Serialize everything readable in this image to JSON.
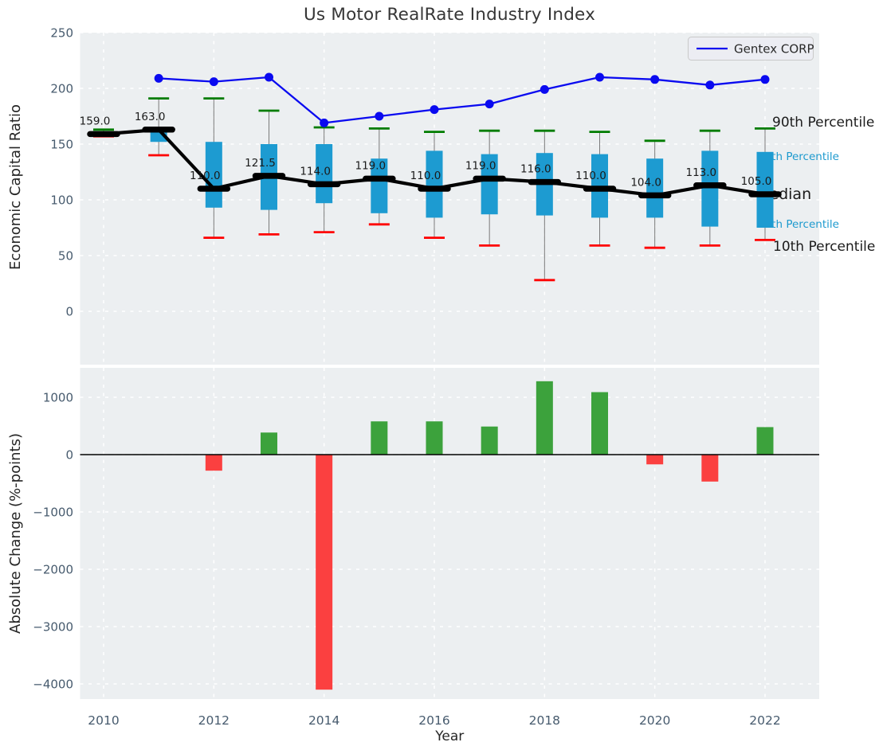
{
  "title": "Us Motor RealRate Industry Index",
  "legend": {
    "label": "Gentex CORP"
  },
  "colors": {
    "plot_background": "#eceff1",
    "grid": "#ffffff",
    "box_fill": "#1d9bd1",
    "p90_cap": "#007c00",
    "p10_cap": "#fe0000",
    "whisker": "#7a7a7a",
    "median_line": "#000000",
    "gentex_line": "#0a0af0",
    "bar_positive": "#3ca23c",
    "bar_negative": "#fb4040",
    "tick_label": "#475b6e",
    "text_dark": "#1b1b1b",
    "annotation_blue": "#1d9ace"
  },
  "chart_data": [
    {
      "type": "box",
      "title": "Us Motor RealRate Industry Index",
      "ylabel": "Economic Capital Ratio",
      "categories": [
        2010,
        2011,
        2012,
        2013,
        2014,
        2015,
        2016,
        2017,
        2018,
        2019,
        2020,
        2021,
        2022
      ],
      "xticks": [
        2010,
        2012,
        2014,
        2016,
        2018,
        2020,
        2022
      ],
      "yticks": [
        250,
        200,
        150,
        100,
        50,
        0
      ],
      "ylim": [
        -48,
        250
      ],
      "grid": true,
      "legend_position": "upper right",
      "boxes": {
        "p90": [
          163,
          191,
          191,
          180,
          165,
          164,
          161,
          162,
          162,
          161,
          153,
          162,
          164
        ],
        "q3": [
          160,
          163,
          152,
          150,
          150,
          137,
          144,
          141,
          142,
          141,
          137,
          144,
          143
        ],
        "median": [
          159.0,
          163.0,
          110.0,
          121.5,
          114.0,
          119.0,
          110.0,
          119.0,
          116.0,
          110.0,
          104.0,
          113.0,
          105.0
        ],
        "q1": [
          158,
          152,
          93,
          91,
          97,
          88,
          84,
          87,
          86,
          84,
          84,
          76,
          75
        ],
        "p10": [
          157,
          140,
          66,
          69,
          71,
          78,
          66,
          59,
          28,
          59,
          57,
          59,
          64
        ]
      },
      "median_labels": [
        "159.0",
        "163.0",
        "110.0",
        "121.5",
        "114.0",
        "119.0",
        "110.0",
        "119.0",
        "116.0",
        "110.0",
        "104.0",
        "113.0",
        "105.0"
      ],
      "series": [
        {
          "name": "Gentex CORP",
          "type": "line",
          "values": [
            null,
            209,
            206,
            210,
            169,
            175,
            181,
            186,
            199,
            210,
            208,
            203,
            208
          ]
        }
      ],
      "annotations": [
        {
          "label": "90th Percentile",
          "color_key": "text_dark"
        },
        {
          "label": "75th Percentile",
          "color_key": "annotation_blue"
        },
        {
          "label": "Median",
          "color_key": "text_dark"
        },
        {
          "label": "25th Percentile",
          "color_key": "annotation_blue"
        },
        {
          "label": "10th Percentile",
          "color_key": "text_dark"
        }
      ]
    },
    {
      "type": "bar",
      "ylabel": "Absolute Change (%-points)",
      "xlabel": "Year",
      "categories": [
        2010,
        2011,
        2012,
        2013,
        2014,
        2015,
        2016,
        2017,
        2018,
        2019,
        2020,
        2021,
        2022
      ],
      "xticks": [
        2010,
        2012,
        2014,
        2016,
        2018,
        2020,
        2022
      ],
      "values": [
        null,
        null,
        -280,
        385,
        -4100,
        580,
        580,
        490,
        1280,
        1090,
        -170,
        -470,
        480
      ],
      "yticks": [
        1000,
        0,
        -1000,
        -2000,
        -3000,
        -4000
      ],
      "ylim": [
        -4270,
        1510
      ],
      "grid": true,
      "zero_line": true
    }
  ]
}
